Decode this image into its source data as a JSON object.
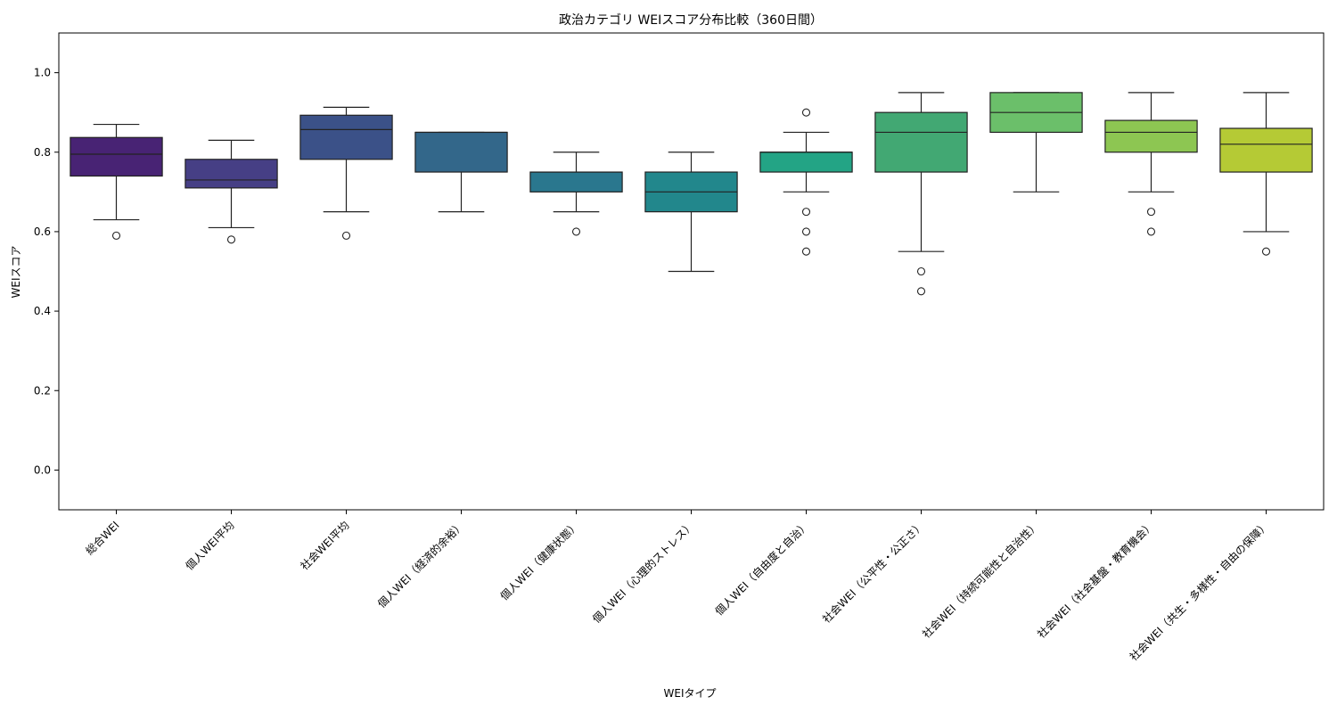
{
  "chart_data": {
    "type": "box",
    "title": "政治カテゴリ WEIスコア分布比較（360日間）",
    "xlabel": "WEIタイプ",
    "ylabel": "WEIスコア",
    "ylim": [
      -0.1,
      1.1
    ],
    "yticks": [
      "0.0",
      "0.2",
      "0.4",
      "0.6",
      "0.8",
      "1.0"
    ],
    "grid": false,
    "categories": [
      "総合WEI",
      "個人WEI平均",
      "社会WEI平均",
      "個人WEI（経済的余裕）",
      "個人WEI（健康状態）",
      "個人WEI（心理的ストレス）",
      "個人WEI（自由度と自治）",
      "社会WEI（公平性・公正さ）",
      "社会WEI（持続可能性と自治性）",
      "社会WEI（社会基盤・教育機会）",
      "社会WEI（共生・多様性・自由の保障）"
    ],
    "boxes": [
      {
        "whisker_low": 0.63,
        "q1": 0.74,
        "median": 0.795,
        "q3": 0.837,
        "whisker_high": 0.87,
        "outliers": [
          0.59
        ],
        "color": "#482374"
      },
      {
        "whisker_low": 0.61,
        "q1": 0.71,
        "median": 0.73,
        "q3": 0.782,
        "whisker_high": 0.83,
        "outliers": [
          0.58
        ],
        "color": "#463f85"
      },
      {
        "whisker_low": 0.65,
        "q1": 0.782,
        "median": 0.857,
        "q3": 0.893,
        "whisker_high": 0.913,
        "outliers": [
          0.59
        ],
        "color": "#3b5188"
      },
      {
        "whisker_low": 0.65,
        "q1": 0.75,
        "median": 0.85,
        "q3": 0.85,
        "whisker_high": 0.85,
        "outliers": [],
        "color": "#33678a"
      },
      {
        "whisker_low": 0.65,
        "q1": 0.7,
        "median": 0.75,
        "q3": 0.75,
        "whisker_high": 0.8,
        "outliers": [
          0.6
        ],
        "color": "#2a778e"
      },
      {
        "whisker_low": 0.5,
        "q1": 0.65,
        "median": 0.7,
        "q3": 0.75,
        "whisker_high": 0.8,
        "outliers": [],
        "color": "#22878c"
      },
      {
        "whisker_low": 0.7,
        "q1": 0.75,
        "median": 0.8,
        "q3": 0.8,
        "whisker_high": 0.85,
        "outliers": [
          0.9,
          0.65,
          0.6,
          0.55
        ],
        "color": "#23a485"
      },
      {
        "whisker_low": 0.55,
        "q1": 0.75,
        "median": 0.85,
        "q3": 0.9,
        "whisker_high": 0.95,
        "outliers": [
          0.5,
          0.45
        ],
        "color": "#42a873"
      },
      {
        "whisker_low": 0.7,
        "q1": 0.85,
        "median": 0.9,
        "q3": 0.95,
        "whisker_high": 0.95,
        "outliers": [],
        "color": "#6bbf6a"
      },
      {
        "whisker_low": 0.7,
        "q1": 0.8,
        "median": 0.85,
        "q3": 0.88,
        "whisker_high": 0.95,
        "outliers": [
          0.65,
          0.6
        ],
        "color": "#8dc652"
      },
      {
        "whisker_low": 0.6,
        "q1": 0.75,
        "median": 0.82,
        "q3": 0.86,
        "whisker_high": 0.95,
        "outliers": [
          0.55
        ],
        "color": "#b5ca35"
      }
    ]
  }
}
